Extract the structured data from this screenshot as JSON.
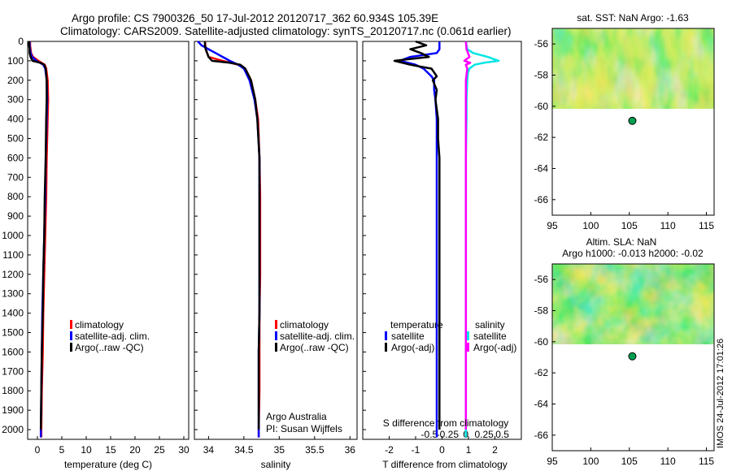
{
  "header": {
    "line1": "Argo profile: CS 7900326_50 17-Jul-2012 20120717_362 60.934S 105.39E",
    "line2": "Climatology: CARS2009. Satellite-adjusted climatology: synTS_20120717.nc (0.061d earlier)"
  },
  "colors": {
    "climatology": "#ff0000",
    "satellite": "#0000ff",
    "argo": "#000000",
    "salinity_satellite": "#00e5e5",
    "salinity_argo": "#ff00ff",
    "map_green": "#00a050"
  },
  "depth_ticks": [
    "0",
    "100",
    "200",
    "300",
    "400",
    "500",
    "600",
    "700",
    "800",
    "900",
    "1000",
    "1100",
    "1200",
    "1300",
    "1400",
    "1500",
    "1600",
    "1700",
    "1800",
    "1900",
    "2000"
  ],
  "labels": {
    "argo_australia": "Argo Australia",
    "pi": "PI: Susan Wijffels",
    "timestamp": "IMOS 24-Jul-2012 17:01:26"
  },
  "chart_data": [
    {
      "type": "line",
      "name": "temperature",
      "xlabel": "temperature (deg C)",
      "x_ticks": [
        "0",
        "5",
        "10",
        "15",
        "20",
        "25",
        "30"
      ],
      "xlim": [
        -2,
        31
      ],
      "ylim": [
        2050,
        0
      ],
      "legend": [
        "climatology",
        "satellite-adj. clim.",
        "Argo(..raw -QC)"
      ],
      "series": [
        {
          "name": "climatology",
          "depth": [
            0,
            20,
            40,
            60,
            80,
            100,
            120,
            140,
            200,
            300,
            400,
            600,
            800,
            1000,
            1200,
            1400,
            1600,
            1800,
            2000,
            2040
          ],
          "values": [
            -1.5,
            -1.5,
            -1.4,
            -1.3,
            -0.9,
            0.2,
            1.5,
            1.8,
            2.1,
            2.2,
            2.1,
            1.9,
            1.8,
            1.6,
            1.4,
            1.2,
            1.1,
            0.9,
            0.8,
            0.8
          ]
        },
        {
          "name": "satellite-adj. clim.",
          "depth": [
            0,
            20,
            40,
            60,
            80,
            100,
            120,
            140,
            200,
            300,
            400,
            600,
            800,
            1000,
            1200,
            1400,
            1600,
            1800,
            2000,
            2040
          ],
          "values": [
            -1.6,
            -1.6,
            -1.5,
            -1.4,
            -1.1,
            -0.2,
            1.2,
            1.6,
            1.9,
            2.0,
            1.9,
            1.7,
            1.6,
            1.4,
            1.2,
            1.0,
            0.9,
            0.8,
            0.7,
            0.7
          ]
        },
        {
          "name": "Argo(..raw -QC)",
          "depth": [
            0,
            20,
            40,
            60,
            80,
            100,
            110,
            120,
            140,
            200,
            300,
            400,
            600,
            800,
            1000,
            1200,
            1400,
            1600,
            1800,
            2000
          ],
          "values": [
            -1.7,
            -1.7,
            -1.6,
            -1.6,
            -1.4,
            -1.0,
            0.6,
            1.4,
            1.7,
            1.9,
            1.9,
            1.8,
            1.7,
            1.5,
            1.4,
            1.2,
            1.1,
            0.9,
            0.8,
            0.7
          ]
        }
      ]
    },
    {
      "type": "line",
      "name": "salinity",
      "xlabel": "salinity",
      "x_ticks": [
        "34",
        "34.5",
        "35",
        "35.5",
        "36"
      ],
      "xlim": [
        33.8,
        36.1
      ],
      "ylim": [
        2050,
        0
      ],
      "legend": [
        "climatology",
        "satellite-adj. clim.",
        "Argo(..raw -QC)"
      ],
      "series": [
        {
          "name": "climatology",
          "depth": [
            0,
            40,
            80,
            100,
            120,
            140,
            200,
            300,
            400,
            600,
            800,
            1000,
            1200,
            1400,
            1600,
            1800,
            2000,
            2040
          ],
          "values": [
            33.95,
            33.96,
            34.0,
            34.2,
            34.42,
            34.52,
            34.6,
            34.66,
            34.7,
            34.72,
            34.73,
            34.73,
            34.73,
            34.72,
            34.72,
            34.72,
            34.71,
            34.71
          ]
        },
        {
          "name": "satellite-adj. clim.",
          "depth": [
            0,
            20,
            40,
            60,
            80,
            100,
            120,
            140,
            200,
            300,
            400,
            600,
            800,
            1000,
            1200,
            1400,
            1600,
            1800,
            2000,
            2040
          ],
          "values": [
            33.85,
            33.9,
            34.0,
            34.1,
            34.2,
            34.3,
            34.42,
            34.5,
            34.58,
            34.65,
            34.69,
            34.72,
            34.72,
            34.72,
            34.72,
            34.72,
            34.71,
            34.71,
            34.71,
            34.71
          ]
        },
        {
          "name": "Argo(..raw -QC)",
          "depth": [
            0,
            20,
            40,
            60,
            80,
            100,
            110,
            120,
            140,
            200,
            300,
            400,
            600,
            800,
            1000,
            1200,
            1400,
            1600,
            1800,
            2000
          ],
          "values": [
            33.95,
            33.95,
            33.96,
            33.98,
            34.0,
            34.05,
            34.3,
            34.45,
            34.52,
            34.6,
            34.66,
            34.69,
            34.72,
            34.72,
            34.72,
            34.72,
            34.72,
            34.71,
            34.71,
            34.71
          ]
        }
      ]
    },
    {
      "type": "line",
      "name": "difference",
      "xlabel": "T difference from climatology",
      "s_label": "S difference from climatology",
      "t_ticks": [
        "-2",
        "-1",
        "0",
        "1",
        "2"
      ],
      "s_ticks": [
        "-0.5",
        "-0.25",
        "0",
        "0.25",
        "0.5"
      ],
      "t_xlim": [
        -3,
        3
      ],
      "ylim": [
        2050,
        0
      ],
      "legend_temperature": {
        "heading": "temperature",
        "items": [
          "satellite",
          "Argo(-adj)"
        ]
      },
      "legend_salinity": {
        "heading": "salinity",
        "items": [
          "satellite",
          "Argo(-adj)"
        ]
      },
      "series": [
        {
          "name": "temperature satellite",
          "depth": [
            0,
            40,
            60,
            80,
            100,
            120,
            140,
            180,
            200,
            250,
            300,
            400,
            500,
            600,
            800,
            1000,
            1200,
            1400,
            1600,
            1800,
            2000,
            2040
          ],
          "values": [
            -0.1,
            -0.1,
            -0.2,
            -1.2,
            -1.6,
            -1.0,
            -0.7,
            -0.4,
            -0.3,
            -0.3,
            -0.25,
            -0.2,
            -0.2,
            -0.2,
            -0.2,
            -0.2,
            -0.2,
            -0.2,
            -0.2,
            -0.2,
            -0.2,
            -0.2
          ]
        },
        {
          "name": "temperature Argo(-adj)",
          "depth": [
            0,
            20,
            40,
            60,
            80,
            100,
            120,
            140,
            160,
            180,
            200,
            250,
            300,
            400,
            500,
            600,
            800,
            1000,
            1200,
            1400,
            1600,
            1800,
            2000
          ],
          "values": [
            -1.0,
            -0.6,
            -1.2,
            -0.8,
            -0.5,
            -1.8,
            -1.2,
            -0.4,
            -0.3,
            -0.2,
            -0.35,
            -0.2,
            -0.25,
            -0.15,
            -0.15,
            -0.1,
            -0.1,
            -0.1,
            -0.1,
            -0.1,
            -0.1,
            -0.1,
            -0.1
          ]
        },
        {
          "name": "salinity satellite",
          "depth": [
            0,
            40,
            60,
            80,
            100,
            110,
            120,
            140,
            160,
            200,
            300,
            400,
            600,
            800,
            1000,
            1200,
            1400,
            1600,
            1800,
            2000,
            2040
          ],
          "values": [
            0,
            0.02,
            0.1,
            0.3,
            0.45,
            0.25,
            0.12,
            0.05,
            0.03,
            0.02,
            0.01,
            0.01,
            0.0,
            0.0,
            0.0,
            0.0,
            0.0,
            0.0,
            0.0,
            0.0,
            0.0
          ]
        },
        {
          "name": "salinity Argo(-adj)",
          "depth": [
            0,
            40,
            60,
            80,
            100,
            110,
            120,
            140,
            200,
            300,
            400,
            600,
            800,
            1000,
            1200,
            1400,
            1600,
            1800,
            2000
          ],
          "values": [
            0,
            0.01,
            0.03,
            0.05,
            -0.02,
            0.06,
            0.0,
            0.02,
            0.0,
            0.0,
            0.0,
            0.0,
            0.0,
            0.0,
            0.0,
            0.0,
            0.0,
            0.0,
            0.0
          ]
        }
      ]
    },
    {
      "type": "heatmap",
      "name": "sst-map",
      "title": "sat. SST: NaN Argo: -1.63",
      "x_ticks": [
        "95",
        "100",
        "105",
        "110",
        "115"
      ],
      "y_ticks": [
        "-56",
        "-58",
        "-60",
        "-62",
        "-64",
        "-66"
      ],
      "xlim": [
        95,
        116
      ],
      "ylim": [
        -67,
        -55
      ],
      "data_lat_range": [
        -60.2,
        -55
      ],
      "point": {
        "lon": 105.39,
        "lat": -60.934
      }
    },
    {
      "type": "heatmap",
      "name": "sla-map",
      "title": "Altim. SLA: NaN",
      "subtitle": "Argo h1000: -0.013 h2000: -0.02",
      "x_ticks": [
        "95",
        "100",
        "105",
        "110",
        "115"
      ],
      "y_ticks": [
        "-56",
        "-58",
        "-60",
        "-62",
        "-64",
        "-66"
      ],
      "xlim": [
        95,
        116
      ],
      "ylim": [
        -67,
        -55
      ],
      "data_lat_range": [
        -60.2,
        -55
      ],
      "point": {
        "lon": 105.39,
        "lat": -60.934
      }
    }
  ]
}
